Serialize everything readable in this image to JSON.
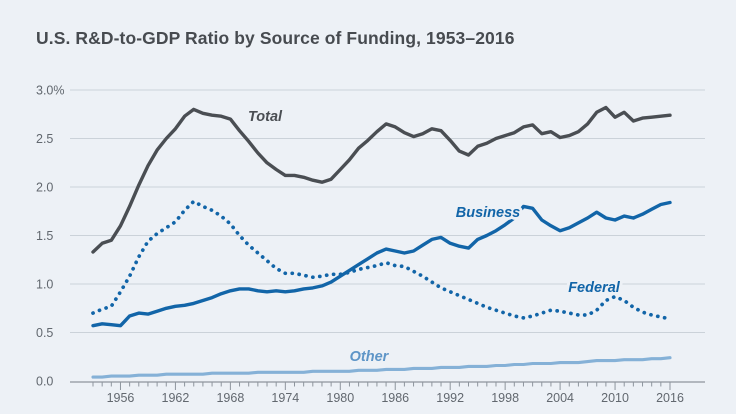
{
  "page": {
    "title": "U.S. R&D-to-GDP Ratio by Source of Funding, 1953–2016"
  },
  "colors": {
    "background": "#edf1f6",
    "title_text": "#474b50",
    "gridline": "#cbd2d9",
    "axis": "#8e959d",
    "tick_label": "#62686f",
    "total_line": "#4a4e53",
    "business_line": "#1265a8",
    "federal_line": "#1265a8",
    "other_line": "#85b1d7",
    "other_label": "#5e95c7"
  },
  "chart_data": {
    "type": "line",
    "title": "U.S. R&D-to-GDP Ratio by Source of Funding, 1953–2016",
    "xlabel": "",
    "ylabel": "",
    "x_start": 1953,
    "x_end": 2016,
    "x_tick_labels": [
      "1956",
      "1962",
      "1968",
      "1974",
      "1980",
      "1986",
      "1992",
      "1998",
      "2004",
      "2010",
      "2016"
    ],
    "y_ticks": [
      {
        "label": "3.0%",
        "value": 3.0
      },
      {
        "label": "2.5",
        "value": 2.5
      },
      {
        "label": "2.0",
        "value": 2.0
      },
      {
        "label": "1.5",
        "value": 1.5
      },
      {
        "label": "1.0",
        "value": 1.0
      },
      {
        "label": "0.5",
        "value": 0.5
      },
      {
        "label": "0.0",
        "value": 0.0
      }
    ],
    "ylim": [
      0,
      3.0
    ],
    "grid": "horizontal",
    "legend": "inline-labels",
    "series": [
      {
        "name": "Total",
        "style": "solid",
        "color": "#4a4e53",
        "label_color": "#4a4e53",
        "values": [
          1.33,
          1.42,
          1.45,
          1.6,
          1.8,
          2.02,
          2.22,
          2.38,
          2.5,
          2.6,
          2.73,
          2.8,
          2.76,
          2.74,
          2.73,
          2.7,
          2.58,
          2.47,
          2.35,
          2.25,
          2.18,
          2.12,
          2.12,
          2.1,
          2.07,
          2.05,
          2.08,
          2.18,
          2.28,
          2.4,
          2.48,
          2.57,
          2.65,
          2.62,
          2.56,
          2.52,
          2.55,
          2.6,
          2.58,
          2.48,
          2.37,
          2.33,
          2.42,
          2.45,
          2.5,
          2.53,
          2.56,
          2.62,
          2.64,
          2.55,
          2.57,
          2.51,
          2.53,
          2.57,
          2.65,
          2.77,
          2.82,
          2.72,
          2.77,
          2.68,
          2.71,
          2.72,
          2.73,
          2.74
        ]
      },
      {
        "name": "Business",
        "style": "solid",
        "color": "#1265a8",
        "label_color": "#1265a8",
        "values": [
          0.57,
          0.59,
          0.58,
          0.57,
          0.67,
          0.7,
          0.69,
          0.72,
          0.75,
          0.77,
          0.78,
          0.8,
          0.83,
          0.86,
          0.9,
          0.93,
          0.95,
          0.95,
          0.93,
          0.92,
          0.93,
          0.92,
          0.93,
          0.95,
          0.96,
          0.98,
          1.02,
          1.08,
          1.14,
          1.2,
          1.26,
          1.32,
          1.36,
          1.34,
          1.32,
          1.34,
          1.4,
          1.46,
          1.48,
          1.42,
          1.39,
          1.37,
          1.46,
          1.5,
          1.55,
          1.61,
          1.68,
          1.8,
          1.78,
          1.66,
          1.6,
          1.55,
          1.58,
          1.63,
          1.68,
          1.74,
          1.68,
          1.66,
          1.7,
          1.68,
          1.72,
          1.77,
          1.82,
          1.84
        ]
      },
      {
        "name": "Federal",
        "style": "dotted",
        "color": "#1265a8",
        "label_color": "#1265a8",
        "values": [
          0.7,
          0.74,
          0.77,
          0.92,
          1.08,
          1.28,
          1.44,
          1.52,
          1.58,
          1.64,
          1.76,
          1.85,
          1.8,
          1.76,
          1.7,
          1.62,
          1.5,
          1.4,
          1.32,
          1.24,
          1.16,
          1.11,
          1.11,
          1.09,
          1.07,
          1.08,
          1.1,
          1.1,
          1.12,
          1.15,
          1.17,
          1.19,
          1.22,
          1.19,
          1.18,
          1.13,
          1.08,
          1.02,
          0.96,
          0.92,
          0.88,
          0.84,
          0.8,
          0.76,
          0.73,
          0.7,
          0.67,
          0.65,
          0.67,
          0.7,
          0.73,
          0.72,
          0.7,
          0.68,
          0.68,
          0.73,
          0.83,
          0.87,
          0.83,
          0.76,
          0.71,
          0.68,
          0.66,
          0.64
        ]
      },
      {
        "name": "Other",
        "style": "solid",
        "color": "#85b1d7",
        "label_color": "#5e95c7",
        "values": [
          0.04,
          0.04,
          0.05,
          0.05,
          0.05,
          0.06,
          0.06,
          0.06,
          0.07,
          0.07,
          0.07,
          0.07,
          0.07,
          0.08,
          0.08,
          0.08,
          0.08,
          0.08,
          0.09,
          0.09,
          0.09,
          0.09,
          0.09,
          0.09,
          0.1,
          0.1,
          0.1,
          0.1,
          0.1,
          0.11,
          0.11,
          0.11,
          0.12,
          0.12,
          0.12,
          0.13,
          0.13,
          0.13,
          0.14,
          0.14,
          0.14,
          0.15,
          0.15,
          0.15,
          0.16,
          0.16,
          0.17,
          0.17,
          0.18,
          0.18,
          0.18,
          0.19,
          0.19,
          0.19,
          0.2,
          0.21,
          0.21,
          0.21,
          0.22,
          0.22,
          0.22,
          0.23,
          0.23,
          0.24
        ]
      }
    ]
  }
}
